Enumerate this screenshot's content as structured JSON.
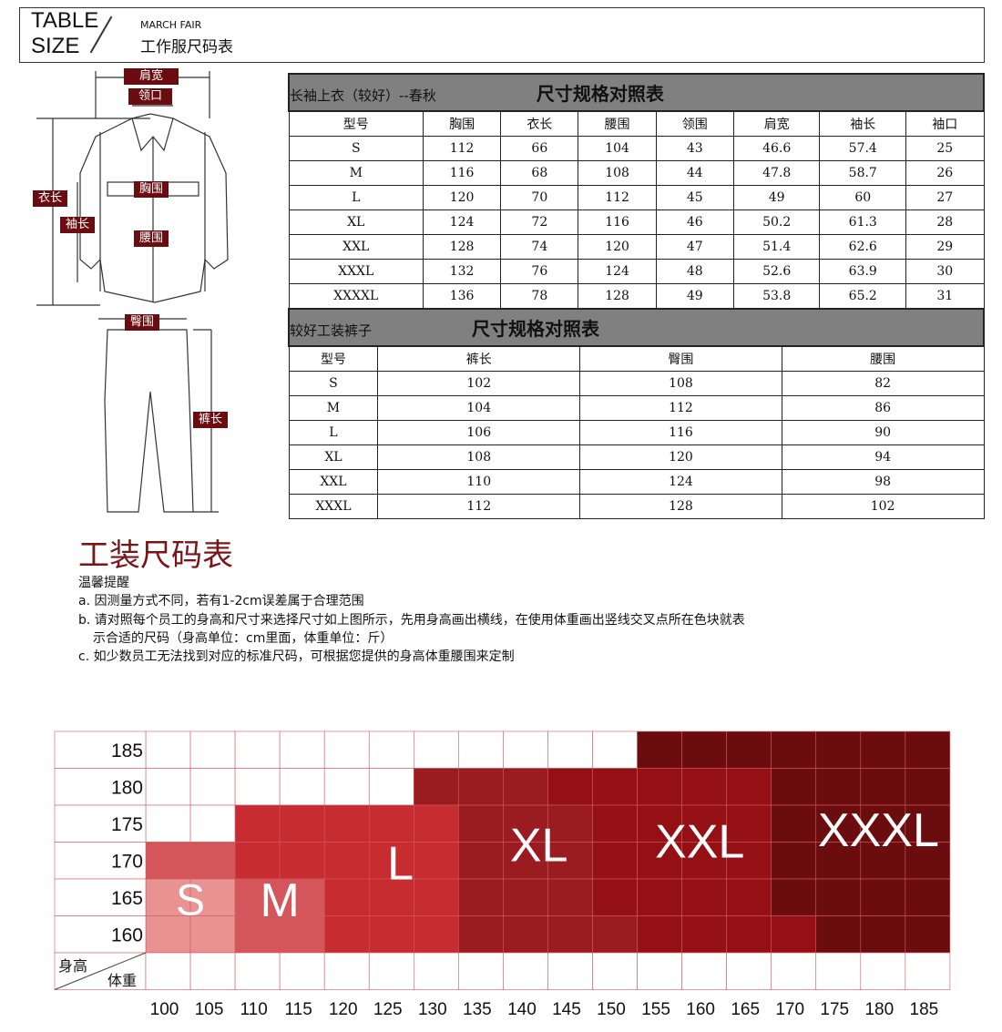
{
  "header": {
    "table_size_line1": "TABLE",
    "table_size_line2": "SIZE",
    "subtitle_en": "MARCH FAIR",
    "subtitle_cn": "工作服尺码表"
  },
  "diagram_labels": {
    "shoulder": "肩宽",
    "collar": "领口",
    "chest": "胸围",
    "length": "衣长",
    "sleeve": "袖长",
    "waist": "腰围",
    "hip": "臀围",
    "pants_length": "裤长"
  },
  "jacket_table": {
    "name": "长袖上衣（较好）--春秋",
    "title": "尺寸规格对照表",
    "headers": [
      "型号",
      "胸围",
      "衣长",
      "腰围",
      "领围",
      "肩宽",
      "袖长",
      "袖口"
    ],
    "rows": [
      [
        "S",
        "112",
        "66",
        "104",
        "43",
        "46.6",
        "57.4",
        "25"
      ],
      [
        "M",
        "116",
        "68",
        "108",
        "44",
        "47.8",
        "58.7",
        "26"
      ],
      [
        "L",
        "120",
        "70",
        "112",
        "45",
        "49",
        "60",
        "27"
      ],
      [
        "XL",
        "124",
        "72",
        "116",
        "46",
        "50.2",
        "61.3",
        "28"
      ],
      [
        "XXL",
        "128",
        "74",
        "120",
        "47",
        "51.4",
        "62.6",
        "29"
      ],
      [
        "XXXL",
        "132",
        "76",
        "124",
        "48",
        "52.6",
        "63.9",
        "30"
      ],
      [
        "XXXXL",
        "136",
        "78",
        "128",
        "49",
        "53.8",
        "65.2",
        "31"
      ]
    ]
  },
  "pants_table": {
    "name": "较好工装裤子",
    "title": "尺寸规格对照表",
    "headers": [
      "型号",
      "裤长",
      "臀围",
      "腰围"
    ],
    "rows": [
      [
        "S",
        "102",
        "108",
        "82"
      ],
      [
        "M",
        "104",
        "112",
        "86"
      ],
      [
        "L",
        "106",
        "116",
        "90"
      ],
      [
        "XL",
        "108",
        "120",
        "94"
      ],
      [
        "XXL",
        "110",
        "124",
        "98"
      ],
      [
        "XXXL",
        "112",
        "128",
        "102"
      ]
    ]
  },
  "notes": {
    "title": "工装尺码表",
    "reminder": "温馨提醒",
    "a": "a. 因测量方式不同，若有1-2cm误差属于合理范围",
    "b1": "b. 请对照每个员工的身高和尺寸来选择尺寸如上图所示，先用身高画出横线，在使用体重画出竖线交叉点所在色块就表",
    "b2": "示合适的尺码（身高单位：cm里面，体重单位：斤）",
    "c": "c. 如少数员工无法找到对应的标准尺码，可根据您提供的身高体重腰围来定制"
  },
  "chart_data": {
    "type": "heatmap",
    "ylabel": "身高",
    "xlabel": "体重",
    "y": [
      185,
      180,
      175,
      170,
      165,
      160
    ],
    "x": [
      100,
      105,
      110,
      115,
      120,
      125,
      130,
      135,
      140,
      145,
      150,
      155,
      160,
      165,
      170,
      175,
      180,
      185
    ],
    "sizes": [
      "S",
      "M",
      "L",
      "XL",
      "XXL",
      "XXXL"
    ],
    "colors": {
      "S": "#e89292",
      "M": "#d4555a",
      "L": "#c62c30",
      "XL": "#9b1c20",
      "XXL": "#951015",
      "XXXL": "#6b0d0e",
      "none": "#ffffff"
    },
    "grid": [
      [
        "",
        "",
        "",
        "",
        "",
        "",
        "",
        "",
        "",
        "",
        "",
        "XXXL",
        "XXXL",
        "XXXL",
        "XXXL",
        "XXXL",
        "XXXL",
        "XXXL"
      ],
      [
        "",
        "",
        "",
        "",
        "",
        "",
        "XL",
        "XL",
        "XL",
        "XXL",
        "XXL",
        "XXL",
        "XXL",
        "XXL",
        "XXXL",
        "XXXL",
        "XXXL",
        "XXXL"
      ],
      [
        "",
        "",
        "L",
        "L",
        "L",
        "L",
        "L",
        "XL",
        "XL",
        "XL",
        "XXL",
        "XXL",
        "XXL",
        "XXL",
        "XXXL",
        "XXXL",
        "XXXL",
        "XXXL"
      ],
      [
        "M",
        "M",
        "L",
        "L",
        "L",
        "L",
        "L",
        "XL",
        "XL",
        "XL",
        "XXL",
        "XXL",
        "XXL",
        "XXL",
        "XXXL",
        "XXXL",
        "XXXL",
        "XXXL"
      ],
      [
        "S",
        "S",
        "M",
        "M",
        "L",
        "L",
        "L",
        "XL",
        "XL",
        "XL",
        "XXL",
        "XXL",
        "XXL",
        "XXL",
        "XXXL",
        "XXXL",
        "XXXL",
        "XXXL"
      ],
      [
        "S",
        "S",
        "M",
        "M",
        "L",
        "L",
        "L",
        "XL",
        "XL",
        "XL",
        "XL",
        "XXL",
        "XXL",
        "XXL",
        "XXL",
        "XXXL",
        "XXXL",
        "XXXL"
      ]
    ]
  }
}
